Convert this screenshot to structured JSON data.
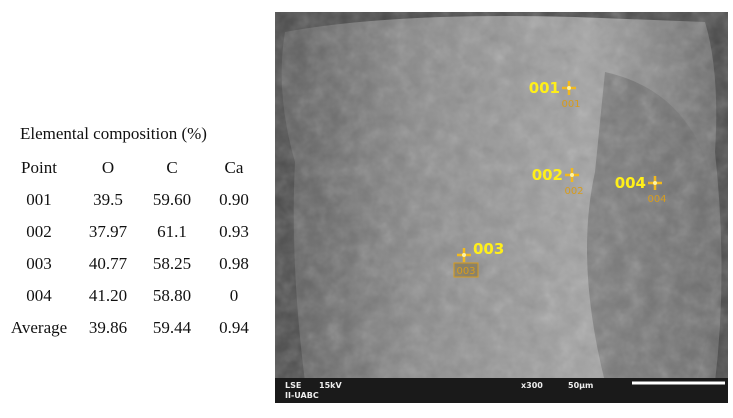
{
  "table": {
    "title": "Elemental composition (%)",
    "header": [
      "Point",
      "O",
      "C",
      "Ca"
    ],
    "rows": [
      [
        "001",
        "39.5",
        "59.60",
        "0.90"
      ],
      [
        "002",
        "37.97",
        "61.1",
        "0.93"
      ],
      [
        "003",
        "40.77",
        "58.25",
        "0.98"
      ],
      [
        "004",
        "41.20",
        "58.80",
        "0"
      ],
      [
        "Average",
        "39.86",
        "59.44",
        "0.94"
      ]
    ]
  },
  "image": {
    "points": [
      {
        "label": "001",
        "tag": "001"
      },
      {
        "label": "002",
        "tag": "002"
      },
      {
        "label": "003",
        "tag": "003"
      },
      {
        "label": "004",
        "tag": "004"
      }
    ],
    "info_bar": {
      "detector": "LSE",
      "voltage": "15kV",
      "magnification": "x300",
      "scale": "50μm",
      "lab": "II-UABC"
    }
  }
}
